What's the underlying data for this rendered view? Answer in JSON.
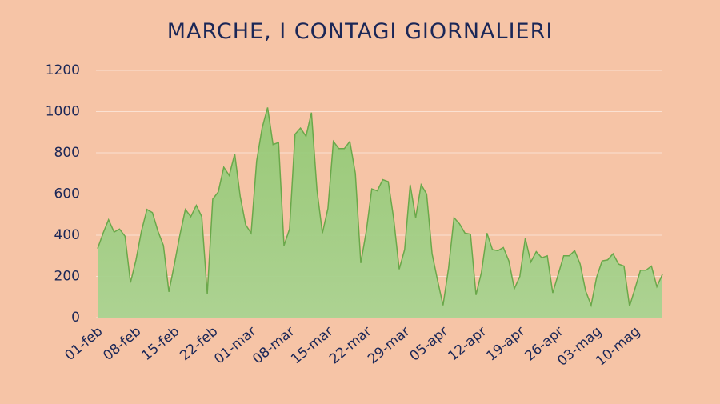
{
  "chart_data": {
    "type": "area",
    "title": "MARCHE, I CONTAGI GIORNALIERI",
    "categories": [
      "01-feb",
      null,
      null,
      null,
      null,
      null,
      null,
      "08-feb",
      null,
      null,
      null,
      null,
      null,
      null,
      "15-feb",
      null,
      null,
      null,
      null,
      null,
      null,
      "22-feb",
      null,
      null,
      null,
      null,
      null,
      null,
      "01-mar",
      null,
      null,
      null,
      null,
      null,
      null,
      "08-mar",
      null,
      null,
      null,
      null,
      null,
      null,
      "15-mar",
      null,
      null,
      null,
      null,
      null,
      null,
      "22-mar",
      null,
      null,
      null,
      null,
      null,
      null,
      "29-mar",
      null,
      null,
      null,
      null,
      null,
      null,
      "05-apr",
      null,
      null,
      null,
      null,
      null,
      null,
      "12-apr",
      null,
      null,
      null,
      null,
      null,
      null,
      "19-apr",
      null,
      null,
      null,
      null,
      null,
      null,
      "26-apr",
      null,
      null,
      null,
      null,
      null,
      null,
      "03-mag",
      null,
      null,
      null,
      null,
      null,
      null,
      "10-mag",
      null,
      null,
      null,
      null,
      null
    ],
    "values": [
      335,
      410,
      475,
      415,
      430,
      395,
      170,
      280,
      420,
      525,
      510,
      420,
      350,
      125,
      260,
      400,
      525,
      490,
      545,
      490,
      115,
      575,
      610,
      730,
      690,
      795,
      590,
      450,
      410,
      760,
      920,
      1020,
      840,
      850,
      350,
      430,
      890,
      920,
      880,
      995,
      620,
      410,
      530,
      855,
      820,
      820,
      855,
      700,
      265,
      420,
      625,
      615,
      670,
      660,
      480,
      235,
      330,
      645,
      485,
      645,
      600,
      310,
      180,
      60,
      240,
      485,
      455,
      410,
      405,
      110,
      220,
      410,
      330,
      325,
      340,
      275,
      140,
      200,
      385,
      270,
      320,
      290,
      300,
      120,
      210,
      300,
      300,
      325,
      260,
      130,
      60,
      195,
      275,
      280,
      310,
      260,
      250,
      55,
      140,
      230,
      230,
      250,
      150,
      210
    ],
    "color": "#a6d08a",
    "line_color": "#6aa84a",
    "ylim": [
      0,
      1200
    ],
    "yticks": [
      0,
      200,
      400,
      600,
      800,
      1000,
      1200
    ],
    "grid": true
  }
}
